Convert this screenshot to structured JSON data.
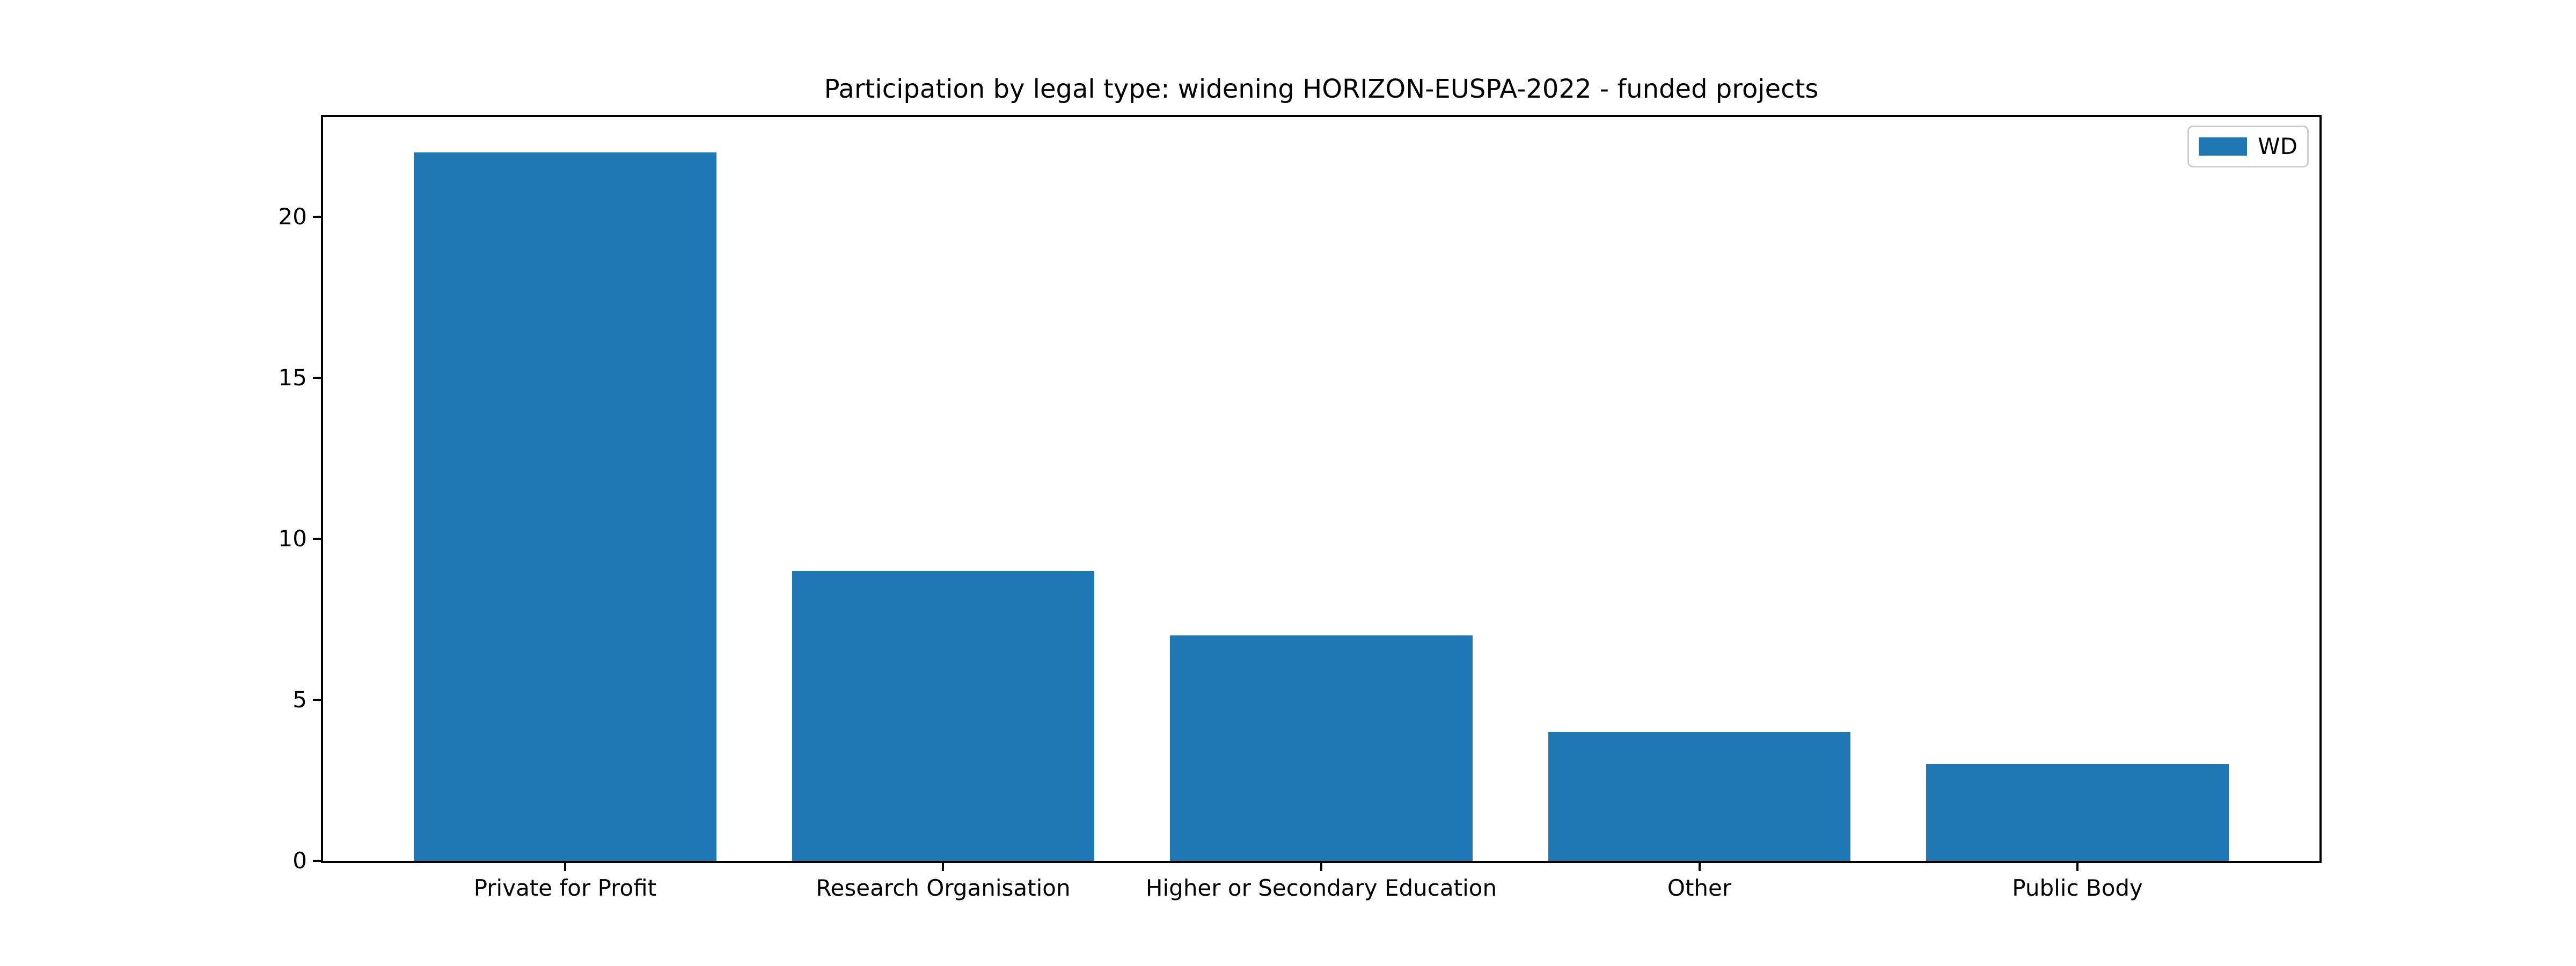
{
  "chart_data": {
    "type": "bar",
    "title": "Participation by legal type: widening HORIZON-EUSPA-2022 - funded projects",
    "categories": [
      "Private for Profit",
      "Research Organisation",
      "Higher or Secondary Education",
      "Other",
      "Public Body"
    ],
    "series": [
      {
        "name": "WD",
        "values": [
          22,
          9,
          7,
          4,
          3
        ]
      }
    ],
    "xlabel": "",
    "ylabel": "",
    "yticks": [
      0,
      5,
      10,
      15,
      20
    ],
    "ylim": [
      0,
      23.1
    ],
    "bar_color": "#1f77b4",
    "grid": false,
    "legend": {
      "position": "upper right",
      "entries": [
        "WD"
      ]
    },
    "layout_hints": {
      "x_edge_margin_units": 0.64,
      "bar_width_units": 0.8
    }
  }
}
